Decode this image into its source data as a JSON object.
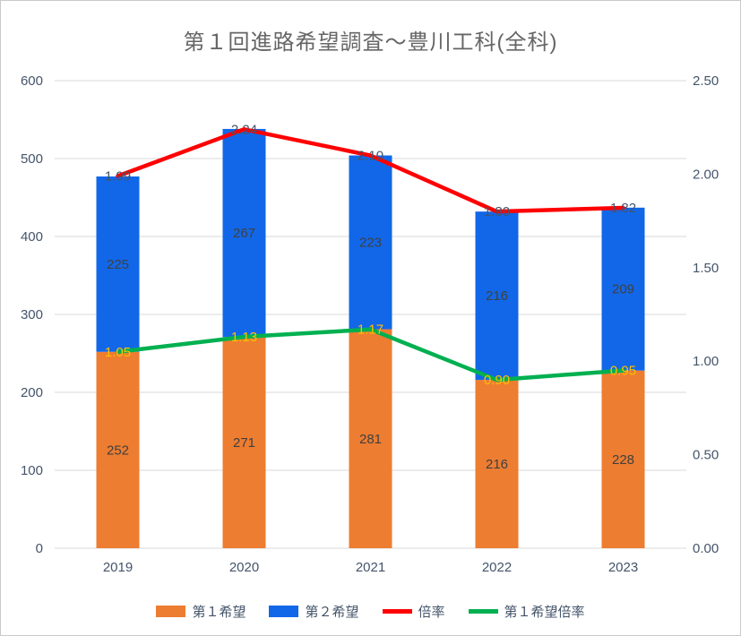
{
  "title": "第１回進路希望調査～豊川工科(全科)",
  "chart_data": {
    "type": "combo-stacked-bar-line",
    "categories": [
      "2019",
      "2020",
      "2021",
      "2022",
      "2023"
    ],
    "bar_series": [
      {
        "name": "第１希望",
        "color": "#ED7D31",
        "values": [
          252,
          271,
          281,
          216,
          228
        ]
      },
      {
        "name": "第２希望",
        "color": "#1267E8",
        "values": [
          225,
          267,
          223,
          216,
          209
        ]
      }
    ],
    "line_series": [
      {
        "name": "倍率",
        "color": "#FF0000",
        "label_color": "#44546A",
        "values": [
          1.99,
          2.24,
          2.1,
          1.8,
          1.82
        ]
      },
      {
        "name": "第１希望倍率",
        "color": "#00B050",
        "label_color": "#FFC000",
        "values": [
          1.05,
          1.13,
          1.17,
          0.9,
          0.95
        ]
      }
    ],
    "left_axis": {
      "min": 0,
      "max": 600,
      "step": 100
    },
    "right_axis": {
      "min": 0,
      "max": 2.5,
      "step": 0.5,
      "decimals": 2
    },
    "bar_label_color": "#404040",
    "grid": true,
    "legend_position": "bottom"
  },
  "colors": {
    "grid": "#D9D9D9",
    "axis_text": "#44546A",
    "title": "#666666",
    "background": "#FFFFFF"
  }
}
